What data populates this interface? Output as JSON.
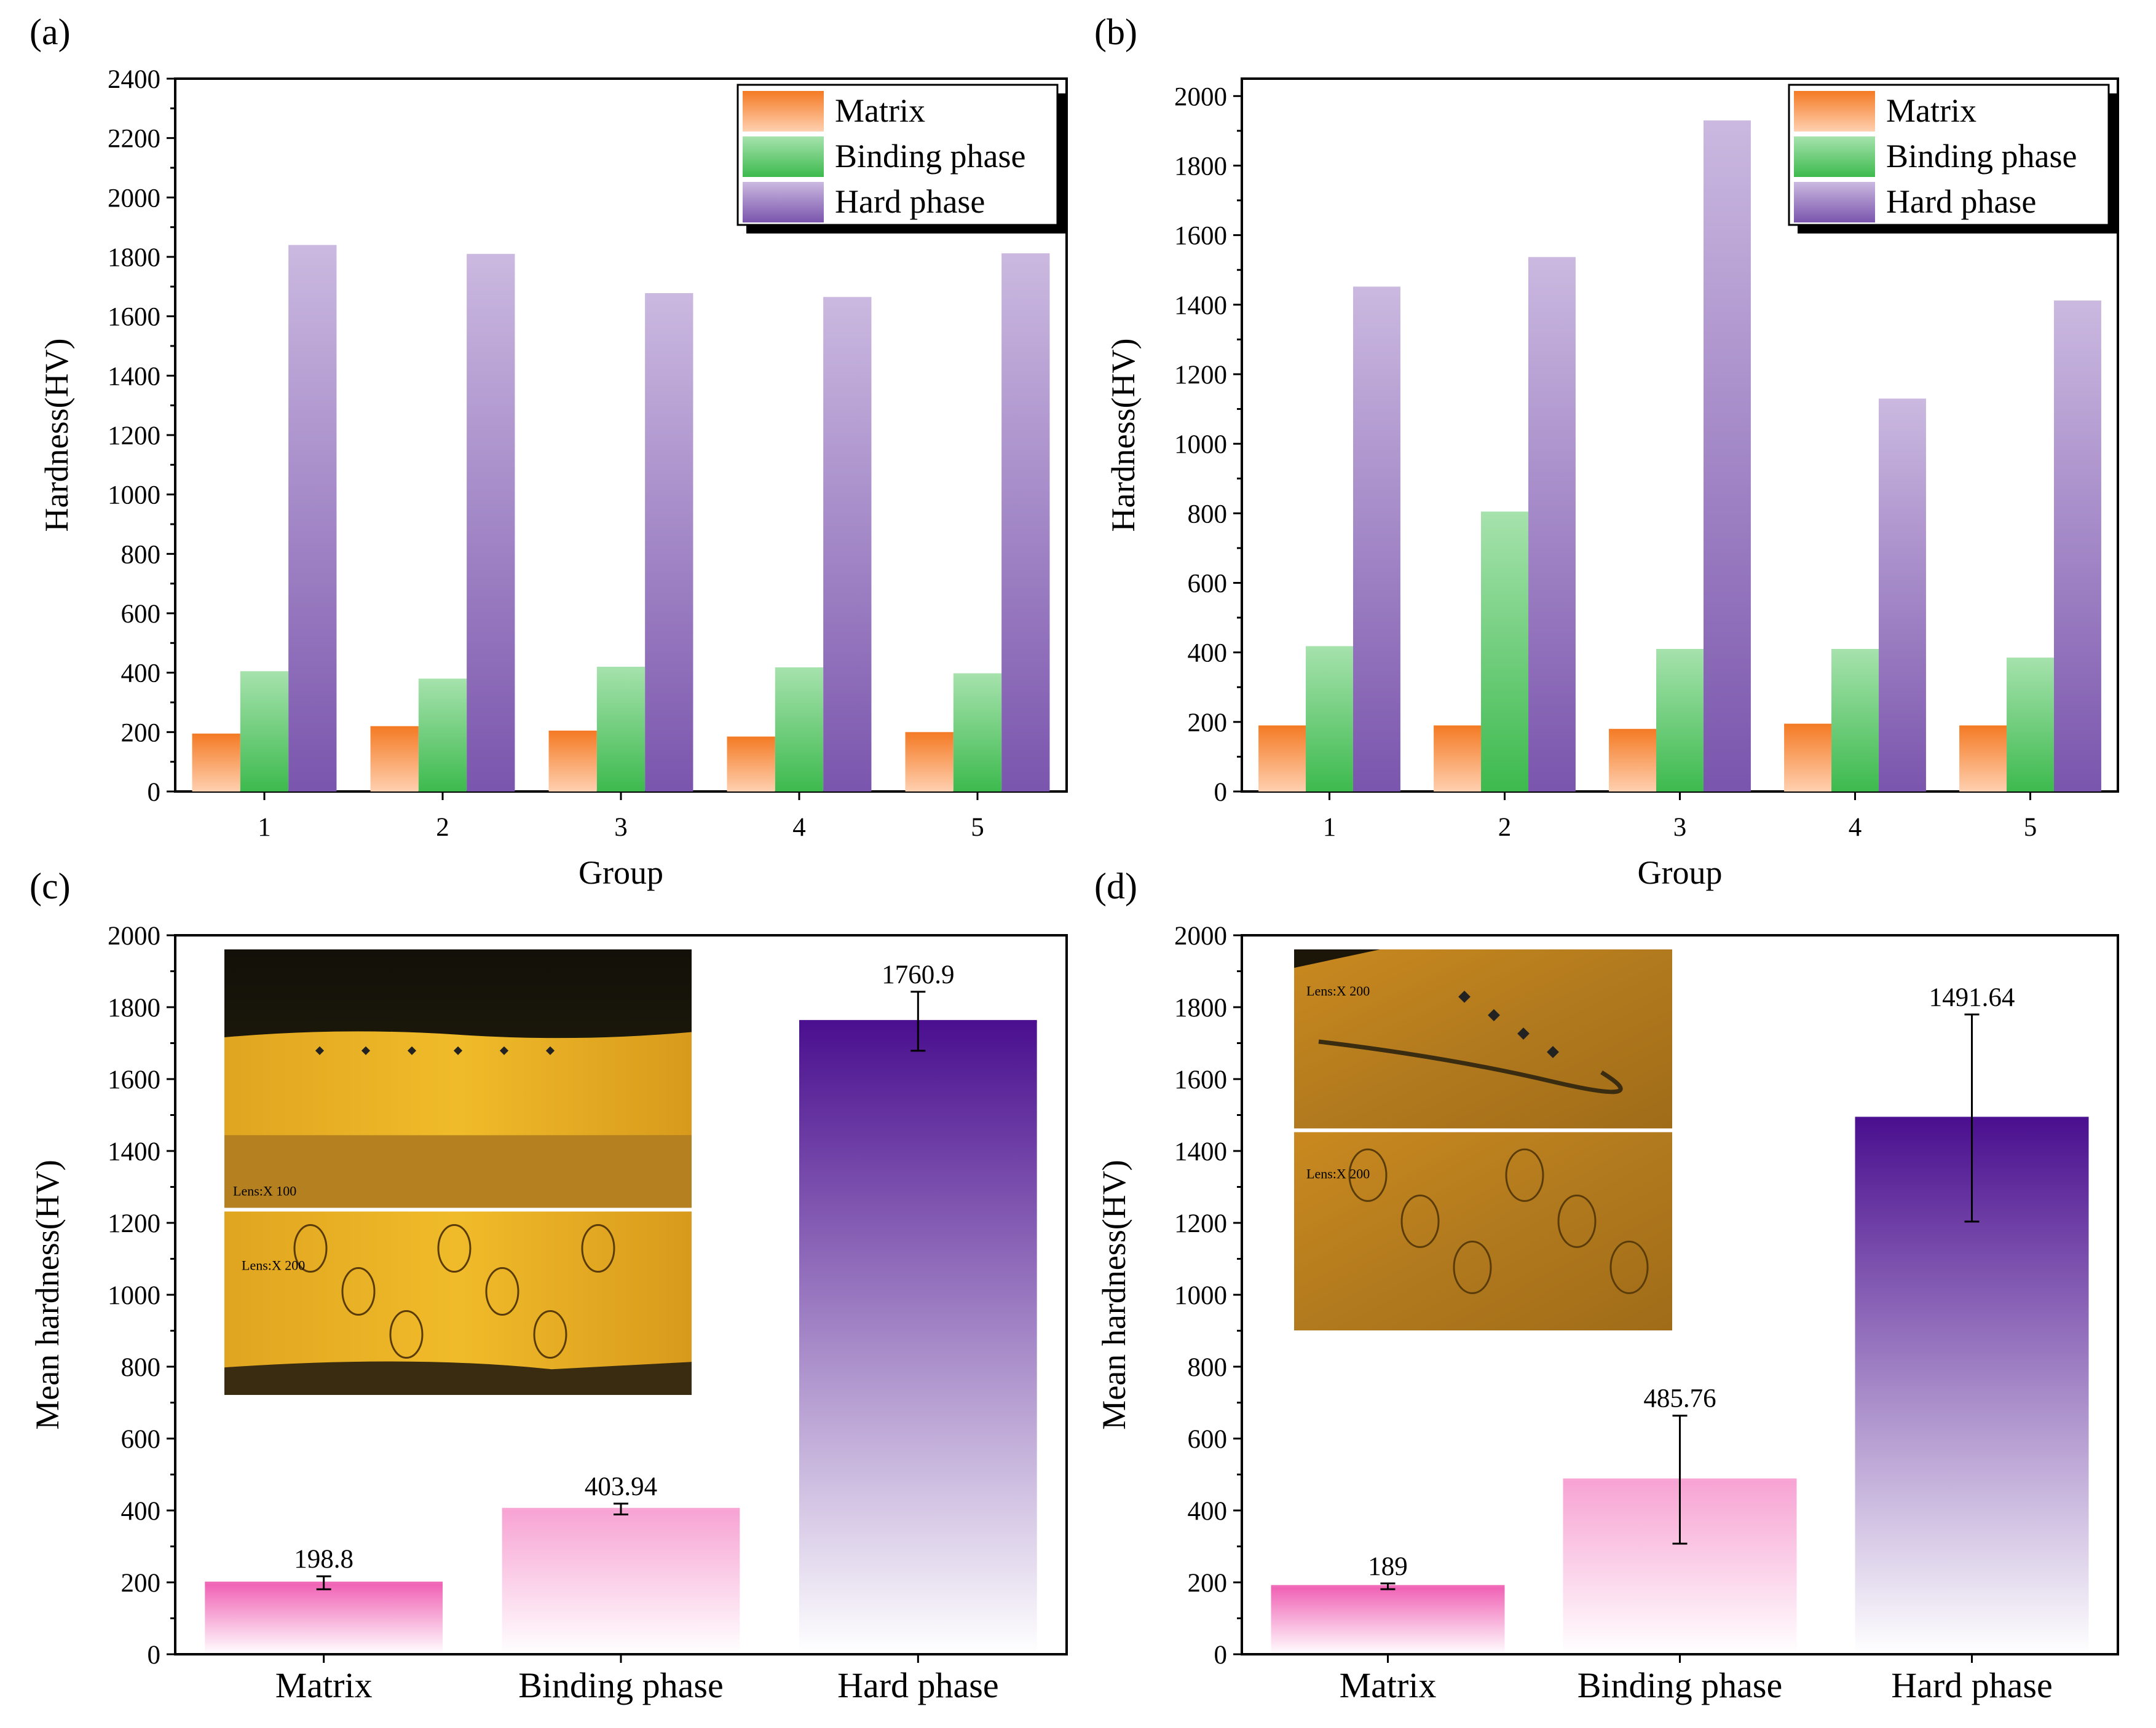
{
  "chart_data": [
    {
      "panel": "(a)",
      "type": "bar",
      "xlabel": "Group",
      "ylabel": "Hardness(HV)",
      "ylim": [
        0,
        2400
      ],
      "yticks": [
        0,
        200,
        400,
        600,
        800,
        1000,
        1200,
        1400,
        1600,
        1800,
        2000,
        2200,
        2400
      ],
      "categories": [
        "1",
        "2",
        "3",
        "4",
        "5"
      ],
      "legend_position": "top-right",
      "series": [
        {
          "name": "Matrix",
          "color": "#f5a46a",
          "values": [
            195,
            220,
            205,
            185,
            200
          ]
        },
        {
          "name": "Binding phase",
          "color": "#7fd28a",
          "values": [
            405,
            380,
            420,
            418,
            398
          ]
        },
        {
          "name": "Hard phase",
          "color": "#9a7cc4",
          "values": [
            1840,
            1810,
            1678,
            1665,
            1812
          ]
        }
      ]
    },
    {
      "panel": "(b)",
      "type": "bar",
      "xlabel": "Group",
      "ylabel": "Hardness(HV)",
      "ylim": [
        0,
        2050
      ],
      "yticks": [
        0,
        200,
        400,
        600,
        800,
        1000,
        1200,
        1400,
        1600,
        1800,
        2000
      ],
      "categories": [
        "1",
        "2",
        "3",
        "4",
        "5"
      ],
      "legend_position": "top-right",
      "series": [
        {
          "name": "Matrix",
          "color": "#f5a46a",
          "values": [
            190,
            190,
            180,
            195,
            190
          ]
        },
        {
          "name": "Binding phase",
          "color": "#7fd28a",
          "values": [
            418,
            805,
            410,
            410,
            385
          ]
        },
        {
          "name": "Hard phase",
          "color": "#9a7cc4",
          "values": [
            1452,
            1537,
            1930,
            1130,
            1412
          ]
        }
      ]
    },
    {
      "panel": "(c)",
      "type": "bar",
      "ylabel": "Mean hardness(HV)",
      "ylim": [
        0,
        2000
      ],
      "yticks": [
        0,
        200,
        400,
        600,
        800,
        1000,
        1200,
        1400,
        1600,
        1800,
        2000
      ],
      "categories": [
        "Matrix",
        "Binding phase",
        "Hard phase"
      ],
      "values": [
        198.8,
        403.94,
        1760.9
      ],
      "value_labels": [
        "198.8",
        "403.94",
        "1760.9"
      ],
      "errors": [
        18,
        15,
        82
      ],
      "colors": [
        "#f06bb8",
        "#f9a8d6",
        "#4b1190"
      ],
      "inset_labels": [
        "Lens:X 100",
        "Lens:X 200"
      ]
    },
    {
      "panel": "(d)",
      "type": "bar",
      "ylabel": "Mean hardness(HV)",
      "ylim": [
        0,
        2000
      ],
      "yticks": [
        0,
        200,
        400,
        600,
        800,
        1000,
        1200,
        1400,
        1600,
        1800,
        2000
      ],
      "categories": [
        "Matrix",
        "Binding phase",
        "Hard phase"
      ],
      "values": [
        189,
        485.76,
        1491.64
      ],
      "value_labels": [
        "189",
        "485.76",
        "1491.64"
      ],
      "errors": [
        8,
        178,
        288
      ],
      "colors": [
        "#f06bb8",
        "#f9a8d6",
        "#4b1190"
      ],
      "inset_labels": [
        "Lens:X 200",
        "Lens:X 200"
      ]
    }
  ]
}
